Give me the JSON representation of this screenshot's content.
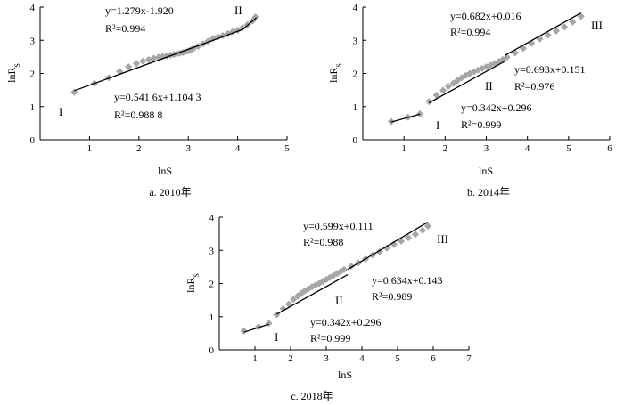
{
  "chart_data": [
    {
      "type": "scatter",
      "caption": "a.  2010年",
      "xlabel": "lnS",
      "ylabel": "lnR",
      "ylabel_sub": "S",
      "xlim": [
        0,
        5
      ],
      "ylim": [
        0,
        4
      ],
      "xticks": [
        0,
        1,
        2,
        3,
        4,
        5
      ],
      "yticks": [
        0,
        1,
        2,
        3,
        4
      ],
      "grid": false,
      "points": [
        [
          0.69,
          1.43
        ],
        [
          1.1,
          1.7
        ],
        [
          1.39,
          1.87
        ],
        [
          1.61,
          2.06
        ],
        [
          1.79,
          2.2
        ],
        [
          1.95,
          2.3
        ],
        [
          2.08,
          2.37
        ],
        [
          2.2,
          2.42
        ],
        [
          2.3,
          2.46
        ],
        [
          2.4,
          2.49
        ],
        [
          2.48,
          2.51
        ],
        [
          2.56,
          2.53
        ],
        [
          2.64,
          2.55
        ],
        [
          2.71,
          2.57
        ],
        [
          2.77,
          2.59
        ],
        [
          2.83,
          2.61
        ],
        [
          2.89,
          2.63
        ],
        [
          2.94,
          2.65
        ],
        [
          3.0,
          2.68
        ],
        [
          3.05,
          2.71
        ],
        [
          3.1,
          2.75
        ],
        [
          3.2,
          2.82
        ],
        [
          3.3,
          2.89
        ],
        [
          3.4,
          2.97
        ],
        [
          3.5,
          3.05
        ],
        [
          3.6,
          3.1
        ],
        [
          3.7,
          3.14
        ],
        [
          3.8,
          3.2
        ],
        [
          3.9,
          3.26
        ],
        [
          4.0,
          3.3
        ],
        [
          4.1,
          3.38
        ],
        [
          4.2,
          3.47
        ],
        [
          4.3,
          3.58
        ],
        [
          4.36,
          3.7
        ]
      ],
      "fits": [
        {
          "segment": "I",
          "equation": "y=0.541 6x+1.104 3",
          "r2": "R²=0.988 8",
          "slope": 0.5416,
          "intercept": 1.1043,
          "x_range": [
            0.69,
            4.1
          ]
        },
        {
          "segment": "II",
          "equation": "y=1.279x-1.920",
          "r2": "R²=0.994",
          "slope": 1.279,
          "intercept": -1.92,
          "x_range": [
            4.1,
            4.38
          ]
        }
      ],
      "region_labels": [
        "I",
        "II"
      ]
    },
    {
      "type": "scatter",
      "caption": "b.  2014年",
      "xlabel": "lnS",
      "ylabel": "lnR",
      "ylabel_sub": "S",
      "xlim": [
        0,
        6
      ],
      "ylim": [
        0,
        4
      ],
      "xticks": [
        0,
        1,
        2,
        3,
        4,
        5,
        6
      ],
      "yticks": [
        0,
        1,
        2,
        3,
        4
      ],
      "grid": false,
      "points": [
        [
          0.69,
          0.55
        ],
        [
          1.1,
          0.68
        ],
        [
          1.39,
          0.78
        ],
        [
          1.61,
          1.15
        ],
        [
          1.79,
          1.35
        ],
        [
          1.95,
          1.49
        ],
        [
          2.08,
          1.61
        ],
        [
          2.2,
          1.7
        ],
        [
          2.3,
          1.79
        ],
        [
          2.4,
          1.87
        ],
        [
          2.5,
          1.94
        ],
        [
          2.6,
          2.0
        ],
        [
          2.7,
          2.05
        ],
        [
          2.8,
          2.1
        ],
        [
          2.9,
          2.15
        ],
        [
          3.0,
          2.2
        ],
        [
          3.1,
          2.25
        ],
        [
          3.2,
          2.3
        ],
        [
          3.3,
          2.36
        ],
        [
          3.4,
          2.42
        ],
        [
          3.5,
          2.49
        ],
        [
          3.7,
          2.62
        ],
        [
          3.9,
          2.76
        ],
        [
          4.1,
          2.91
        ],
        [
          4.3,
          3.04
        ],
        [
          4.5,
          3.16
        ],
        [
          4.7,
          3.28
        ],
        [
          4.9,
          3.4
        ],
        [
          5.1,
          3.55
        ],
        [
          5.3,
          3.72
        ]
      ],
      "fits": [
        {
          "segment": "I",
          "equation": "y=0.342x+0.296",
          "r2": "R²=0.999",
          "slope": 0.342,
          "intercept": 0.296,
          "x_range": [
            0.69,
            1.39
          ]
        },
        {
          "segment": "II",
          "equation": "y=0.682x+0.016",
          "r2": "R²=0.994",
          "slope": 0.682,
          "intercept": 0.016,
          "x_range": [
            1.61,
            3.45
          ]
        },
        {
          "segment": "III",
          "equation": "y=0.693x+0.151",
          "r2": "R²=0.976",
          "slope": 0.693,
          "intercept": 0.151,
          "x_range": [
            3.45,
            5.3
          ]
        }
      ],
      "region_labels": [
        "I",
        "II",
        "III"
      ]
    },
    {
      "type": "scatter",
      "caption": "c.  2018年",
      "xlabel": "lnS",
      "ylabel": "lnR",
      "ylabel_sub": "S",
      "xlim": [
        0,
        7
      ],
      "ylim": [
        0,
        4
      ],
      "xticks": [
        0,
        1,
        2,
        3,
        4,
        5,
        6,
        7
      ],
      "yticks": [
        0,
        1,
        2,
        3,
        4
      ],
      "grid": false,
      "points": [
        [
          0.69,
          0.57
        ],
        [
          1.1,
          0.69
        ],
        [
          1.39,
          0.8
        ],
        [
          1.61,
          1.06
        ],
        [
          1.79,
          1.24
        ],
        [
          1.95,
          1.38
        ],
        [
          2.08,
          1.52
        ],
        [
          2.2,
          1.62
        ],
        [
          2.3,
          1.7
        ],
        [
          2.4,
          1.78
        ],
        [
          2.5,
          1.84
        ],
        [
          2.6,
          1.9
        ],
        [
          2.7,
          1.95
        ],
        [
          2.8,
          2.0
        ],
        [
          2.9,
          2.06
        ],
        [
          3.0,
          2.12
        ],
        [
          3.1,
          2.18
        ],
        [
          3.2,
          2.24
        ],
        [
          3.3,
          2.3
        ],
        [
          3.4,
          2.36
        ],
        [
          3.5,
          2.42
        ],
        [
          3.7,
          2.52
        ],
        [
          3.9,
          2.62
        ],
        [
          4.1,
          2.74
        ],
        [
          4.3,
          2.86
        ],
        [
          4.5,
          2.96
        ],
        [
          4.7,
          3.07
        ],
        [
          4.9,
          3.18
        ],
        [
          5.1,
          3.28
        ],
        [
          5.3,
          3.38
        ],
        [
          5.5,
          3.48
        ],
        [
          5.7,
          3.6
        ],
        [
          5.85,
          3.73
        ]
      ],
      "fits": [
        {
          "segment": "I",
          "equation": "y=0.342x+0.296",
          "r2": "R²=0.999",
          "slope": 0.342,
          "intercept": 0.296,
          "x_range": [
            0.69,
            1.39
          ]
        },
        {
          "segment": "II",
          "equation": "y=0.599x+0.111",
          "r2": "R²=0.988",
          "slope": 0.599,
          "intercept": 0.111,
          "x_range": [
            1.61,
            3.6
          ]
        },
        {
          "segment": "III",
          "equation": "y=0.634x+0.143",
          "r2": "R²=0.989",
          "slope": 0.634,
          "intercept": 0.143,
          "x_range": [
            3.6,
            5.85
          ]
        }
      ],
      "region_labels": [
        "I",
        "II",
        "III"
      ]
    }
  ]
}
